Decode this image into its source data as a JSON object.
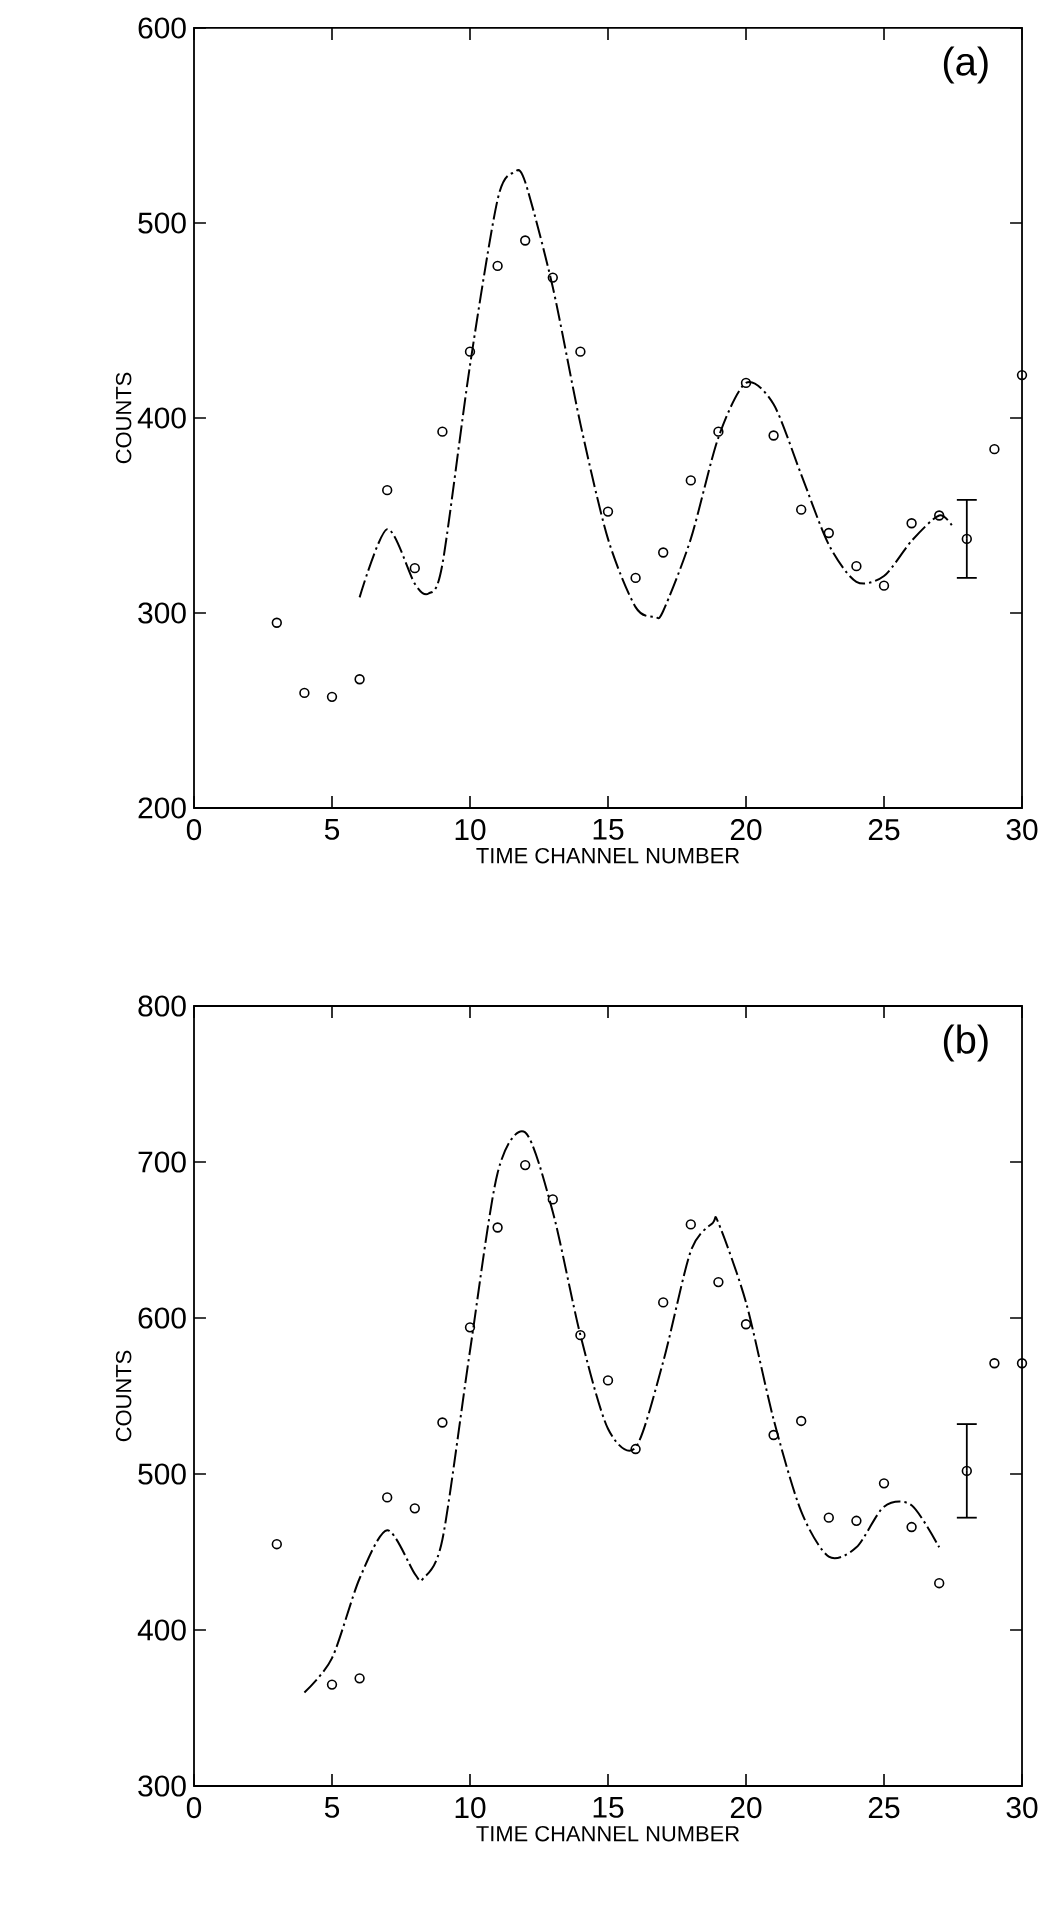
{
  "chart_data": [
    {
      "type": "scatter",
      "title": "(a)",
      "xlabel": "TIME CHANNEL NUMBER",
      "ylabel": "COUNTS",
      "xlim": [
        0,
        30
      ],
      "ylim": [
        200,
        600
      ],
      "xticks": [
        0,
        5,
        10,
        15,
        20,
        25,
        30
      ],
      "yticks": [
        200,
        300,
        400,
        500,
        600
      ],
      "series": [
        {
          "color": "#000000",
          "marker": "circle",
          "x": [
            3,
            4,
            5,
            6,
            7,
            8,
            9,
            10,
            11,
            12,
            13,
            14,
            15,
            16,
            17,
            18,
            19,
            20,
            21,
            22,
            23,
            24,
            25,
            26,
            27,
            28,
            29,
            30
          ],
          "values": [
            295,
            259,
            257,
            266,
            363,
            323,
            393,
            434,
            478,
            491,
            472,
            434,
            352,
            318,
            331,
            368,
            393,
            418,
            391,
            353,
            341,
            324,
            314,
            346,
            350,
            338,
            384,
            422
          ],
          "errors": [
            null,
            null,
            null,
            null,
            null,
            null,
            null,
            null,
            null,
            null,
            null,
            null,
            null,
            null,
            null,
            null,
            null,
            null,
            null,
            null,
            null,
            null,
            null,
            null,
            null,
            [
              318,
              358
            ],
            null,
            null
          ]
        },
        {
          "type": "line",
          "color": "#000000",
          "marker": "none",
          "line_style": "dashed",
          "x": [
            6,
            7,
            8,
            8.5,
            9,
            10,
            11,
            11.6,
            12,
            13,
            14,
            15,
            16,
            16.7,
            17,
            18,
            19,
            20,
            21,
            22,
            23,
            24,
            25,
            26,
            27,
            27.5
          ],
          "values": [
            308,
            343,
            315,
            310,
            325,
            427,
            512,
            526,
            521,
            467,
            397,
            338,
            303,
            298,
            301,
            338,
            390,
            418,
            407,
            371,
            335,
            316,
            319,
            337,
            350,
            344
          ]
        }
      ]
    },
    {
      "type": "scatter",
      "title": "(b)",
      "xlabel": "TIME CHANNEL NUMBER",
      "ylabel": "COUNTS",
      "xlim": [
        0,
        30
      ],
      "ylim": [
        300,
        800
      ],
      "xticks": [
        0,
        5,
        10,
        15,
        20,
        25,
        30
      ],
      "yticks": [
        300,
        400,
        500,
        600,
        700,
        800
      ],
      "series": [
        {
          "color": "#000000",
          "marker": "circle",
          "x": [
            3,
            5,
            6,
            7,
            8,
            9,
            10,
            11,
            12,
            13,
            14,
            15,
            16,
            17,
            18,
            19,
            20,
            21,
            22,
            23,
            24,
            25,
            26,
            27,
            28,
            29,
            30
          ],
          "values": [
            455,
            365,
            369,
            485,
            478,
            533,
            594,
            658,
            698,
            676,
            589,
            560,
            516,
            610,
            660,
            623,
            596,
            525,
            534,
            472,
            470,
            494,
            466,
            430,
            502,
            571,
            571
          ],
          "errors": [
            null,
            null,
            null,
            null,
            null,
            null,
            null,
            null,
            null,
            null,
            null,
            null,
            null,
            null,
            null,
            null,
            null,
            null,
            null,
            null,
            null,
            null,
            null,
            null,
            [
              472,
              532
            ],
            null,
            null
          ]
        },
        {
          "type": "line",
          "color": "#000000",
          "marker": "none",
          "line_style": "dashed",
          "x": [
            4,
            5,
            6,
            7,
            8,
            8.3,
            9,
            10,
            11,
            12,
            13,
            14,
            15,
            16,
            17,
            18,
            18.8,
            19,
            20,
            21,
            22,
            23,
            24,
            25,
            26,
            27
          ],
          "values": [
            360,
            382,
            433,
            464,
            436,
            433,
            458,
            579,
            693,
            719,
            668,
            589,
            529,
            517,
            572,
            643,
            661,
            661,
            610,
            535,
            476,
            447,
            453,
            479,
            480,
            453
          ]
        }
      ]
    }
  ]
}
